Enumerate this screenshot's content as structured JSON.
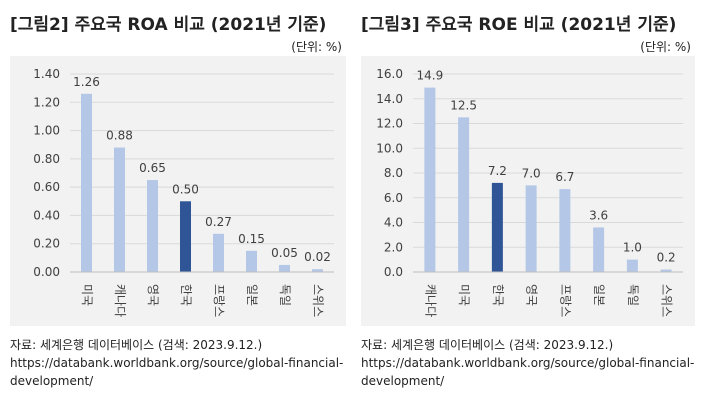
{
  "left": {
    "title": "[그림2] 주요국 ROA 비교 (2021년 기준)",
    "unit": "(단위: %)",
    "source_label": "자료: 세계은행 데이터베이스 (검색: 2023.9.12.)",
    "source_url": "https://databank.worldbank.org/source/global-financial-development/"
  },
  "right": {
    "title": "[그림3] 주요국 ROE 비교 (2021년 기준)",
    "unit": "(단위: %)",
    "source_label": "자료: 세계은행 데이터베이스 (검색: 2023.9.12.)",
    "source_url": "https://databank.worldbank.org/source/global-financial-development/"
  },
  "colors": {
    "bar": "#b4c7e7",
    "highlight": "#2f5597",
    "panel_bg": "#f2f2f2",
    "grid": "#d9d9d9"
  },
  "chart_data": [
    {
      "type": "bar",
      "title": "[그림2] 주요국 ROA 비교 (2021년 기준)",
      "categories": [
        "미국",
        "캐나다",
        "영국",
        "한국",
        "프랑스",
        "일본",
        "독일",
        "스위스"
      ],
      "values": [
        1.26,
        0.88,
        0.65,
        0.5,
        0.27,
        0.15,
        0.05,
        0.02
      ],
      "value_labels": [
        "1.26",
        "0.88",
        "0.65",
        "0.50",
        "0.27",
        "0.15",
        "0.05",
        "0.02"
      ],
      "highlight": "한국",
      "ylim": [
        0,
        1.4
      ],
      "yticks": [
        "0.00",
        "0.20",
        "0.40",
        "0.60",
        "0.80",
        "1.00",
        "1.20",
        "1.40"
      ],
      "grid": true,
      "xlabel": "",
      "ylabel": ""
    },
    {
      "type": "bar",
      "title": "[그림3] 주요국 ROE 비교 (2021년 기준)",
      "categories": [
        "캐나다",
        "미국",
        "한국",
        "영국",
        "프랑스",
        "일본",
        "독일",
        "스위스"
      ],
      "values": [
        14.9,
        12.5,
        7.2,
        7.0,
        6.7,
        3.6,
        1.0,
        0.2
      ],
      "value_labels": [
        "14.9",
        "12.5",
        "7.2",
        "7.0",
        "6.7",
        "3.6",
        "1.0",
        "0.2"
      ],
      "highlight": "한국",
      "ylim": [
        0,
        16
      ],
      "yticks": [
        "0.0",
        "2.0",
        "4.0",
        "6.0",
        "8.0",
        "10.0",
        "12.0",
        "14.0",
        "16.0"
      ],
      "grid": true,
      "xlabel": "",
      "ylabel": ""
    }
  ]
}
